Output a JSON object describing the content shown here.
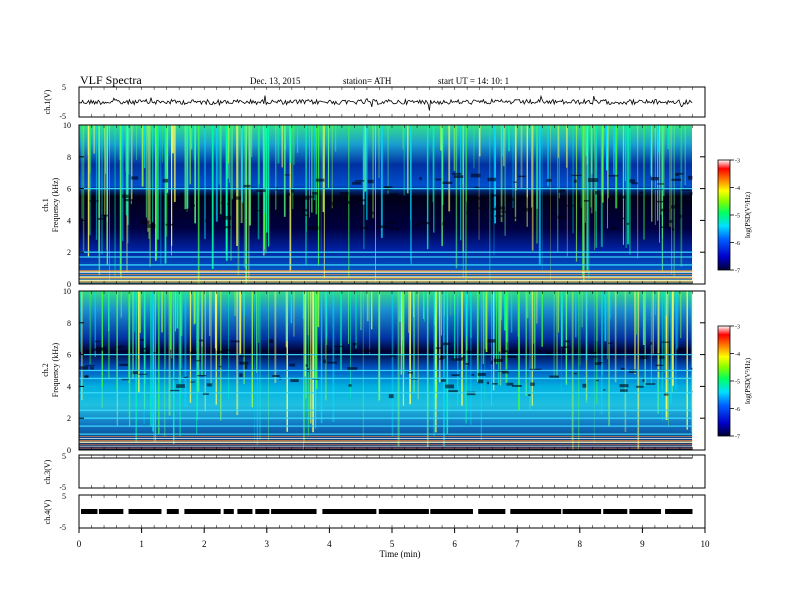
{
  "header": {
    "title": "VLF  Spectra",
    "date": "Dec. 13, 2015",
    "station": "station= ATH",
    "start": "start  UT  =    14: 10: 1"
  },
  "chart_data": [
    {
      "type": "line",
      "panel": "ch1-voltage",
      "ylabel": "ch.1(V)",
      "y_ticks": [
        "5",
        "-5"
      ],
      "ylim": [
        -5,
        5
      ],
      "approx_level_v": 0
    },
    {
      "type": "heatmap",
      "panel": "ch1-spectrogram",
      "ylabel": "ch.1\nFrequency  (kHz)",
      "ylabel_ch": "ch.1",
      "ylabel_freq": "Frequency  (kHz)",
      "y_ticks": [
        "0",
        "2",
        "4",
        "6",
        "8",
        "10"
      ],
      "ylim_khz": [
        0,
        10
      ],
      "colorbar_label": "log(PSD(V²/Hz)",
      "colorbar_ticks": [
        "-3",
        "-4",
        "-5",
        "-6",
        "-7"
      ],
      "colorbar_range": [
        -7,
        -3
      ],
      "horizontal_lines_khz": [
        6.0,
        2.0,
        1.7,
        1.2,
        0.8,
        0.4,
        0.2
      ]
    },
    {
      "type": "heatmap",
      "panel": "ch2-spectrogram",
      "ylabel": "ch.2\nFrequency  (kHz)",
      "ylabel_ch": "ch.2",
      "ylabel_freq": "Frequency  (kHz)",
      "y_ticks": [
        "0",
        "2",
        "4",
        "6",
        "8",
        "10"
      ],
      "ylim_khz": [
        0,
        10
      ],
      "colorbar_label": "log(PSD(V²/Hz)",
      "colorbar_ticks": [
        "-3",
        "-4",
        "-5",
        "-6",
        "-7"
      ],
      "colorbar_range": [
        -7,
        -3
      ],
      "horizontal_lines_khz": [
        6.0,
        5.0,
        4.5,
        3.6,
        2.5,
        2.0,
        1.5,
        1.0,
        0.5
      ]
    },
    {
      "type": "line",
      "panel": "ch3-voltage",
      "ylabel": "ch.3(V)",
      "y_ticks": [
        "5",
        "-5"
      ],
      "ylim": [
        -5,
        5
      ],
      "approx_level_v": 5
    },
    {
      "type": "line",
      "panel": "ch4-voltage",
      "ylabel": "ch.4(V)",
      "y_ticks": [
        "5",
        "-5"
      ],
      "ylim": [
        -5,
        5
      ],
      "approx_level_v": 0
    }
  ],
  "x_axis": {
    "xlabel": "Time  (min)",
    "ticks": [
      "0",
      "1",
      "2",
      "3",
      "4",
      "5",
      "6",
      "7",
      "8",
      "9",
      "10"
    ],
    "xlim_min": [
      0,
      10
    ],
    "data_end_min": 9.8
  },
  "colors": {
    "background": "#ffffff",
    "axis": "#000000",
    "spec_low": "#000055",
    "spec_mid": "#00e0ff",
    "spec_high": "#ff0000"
  }
}
